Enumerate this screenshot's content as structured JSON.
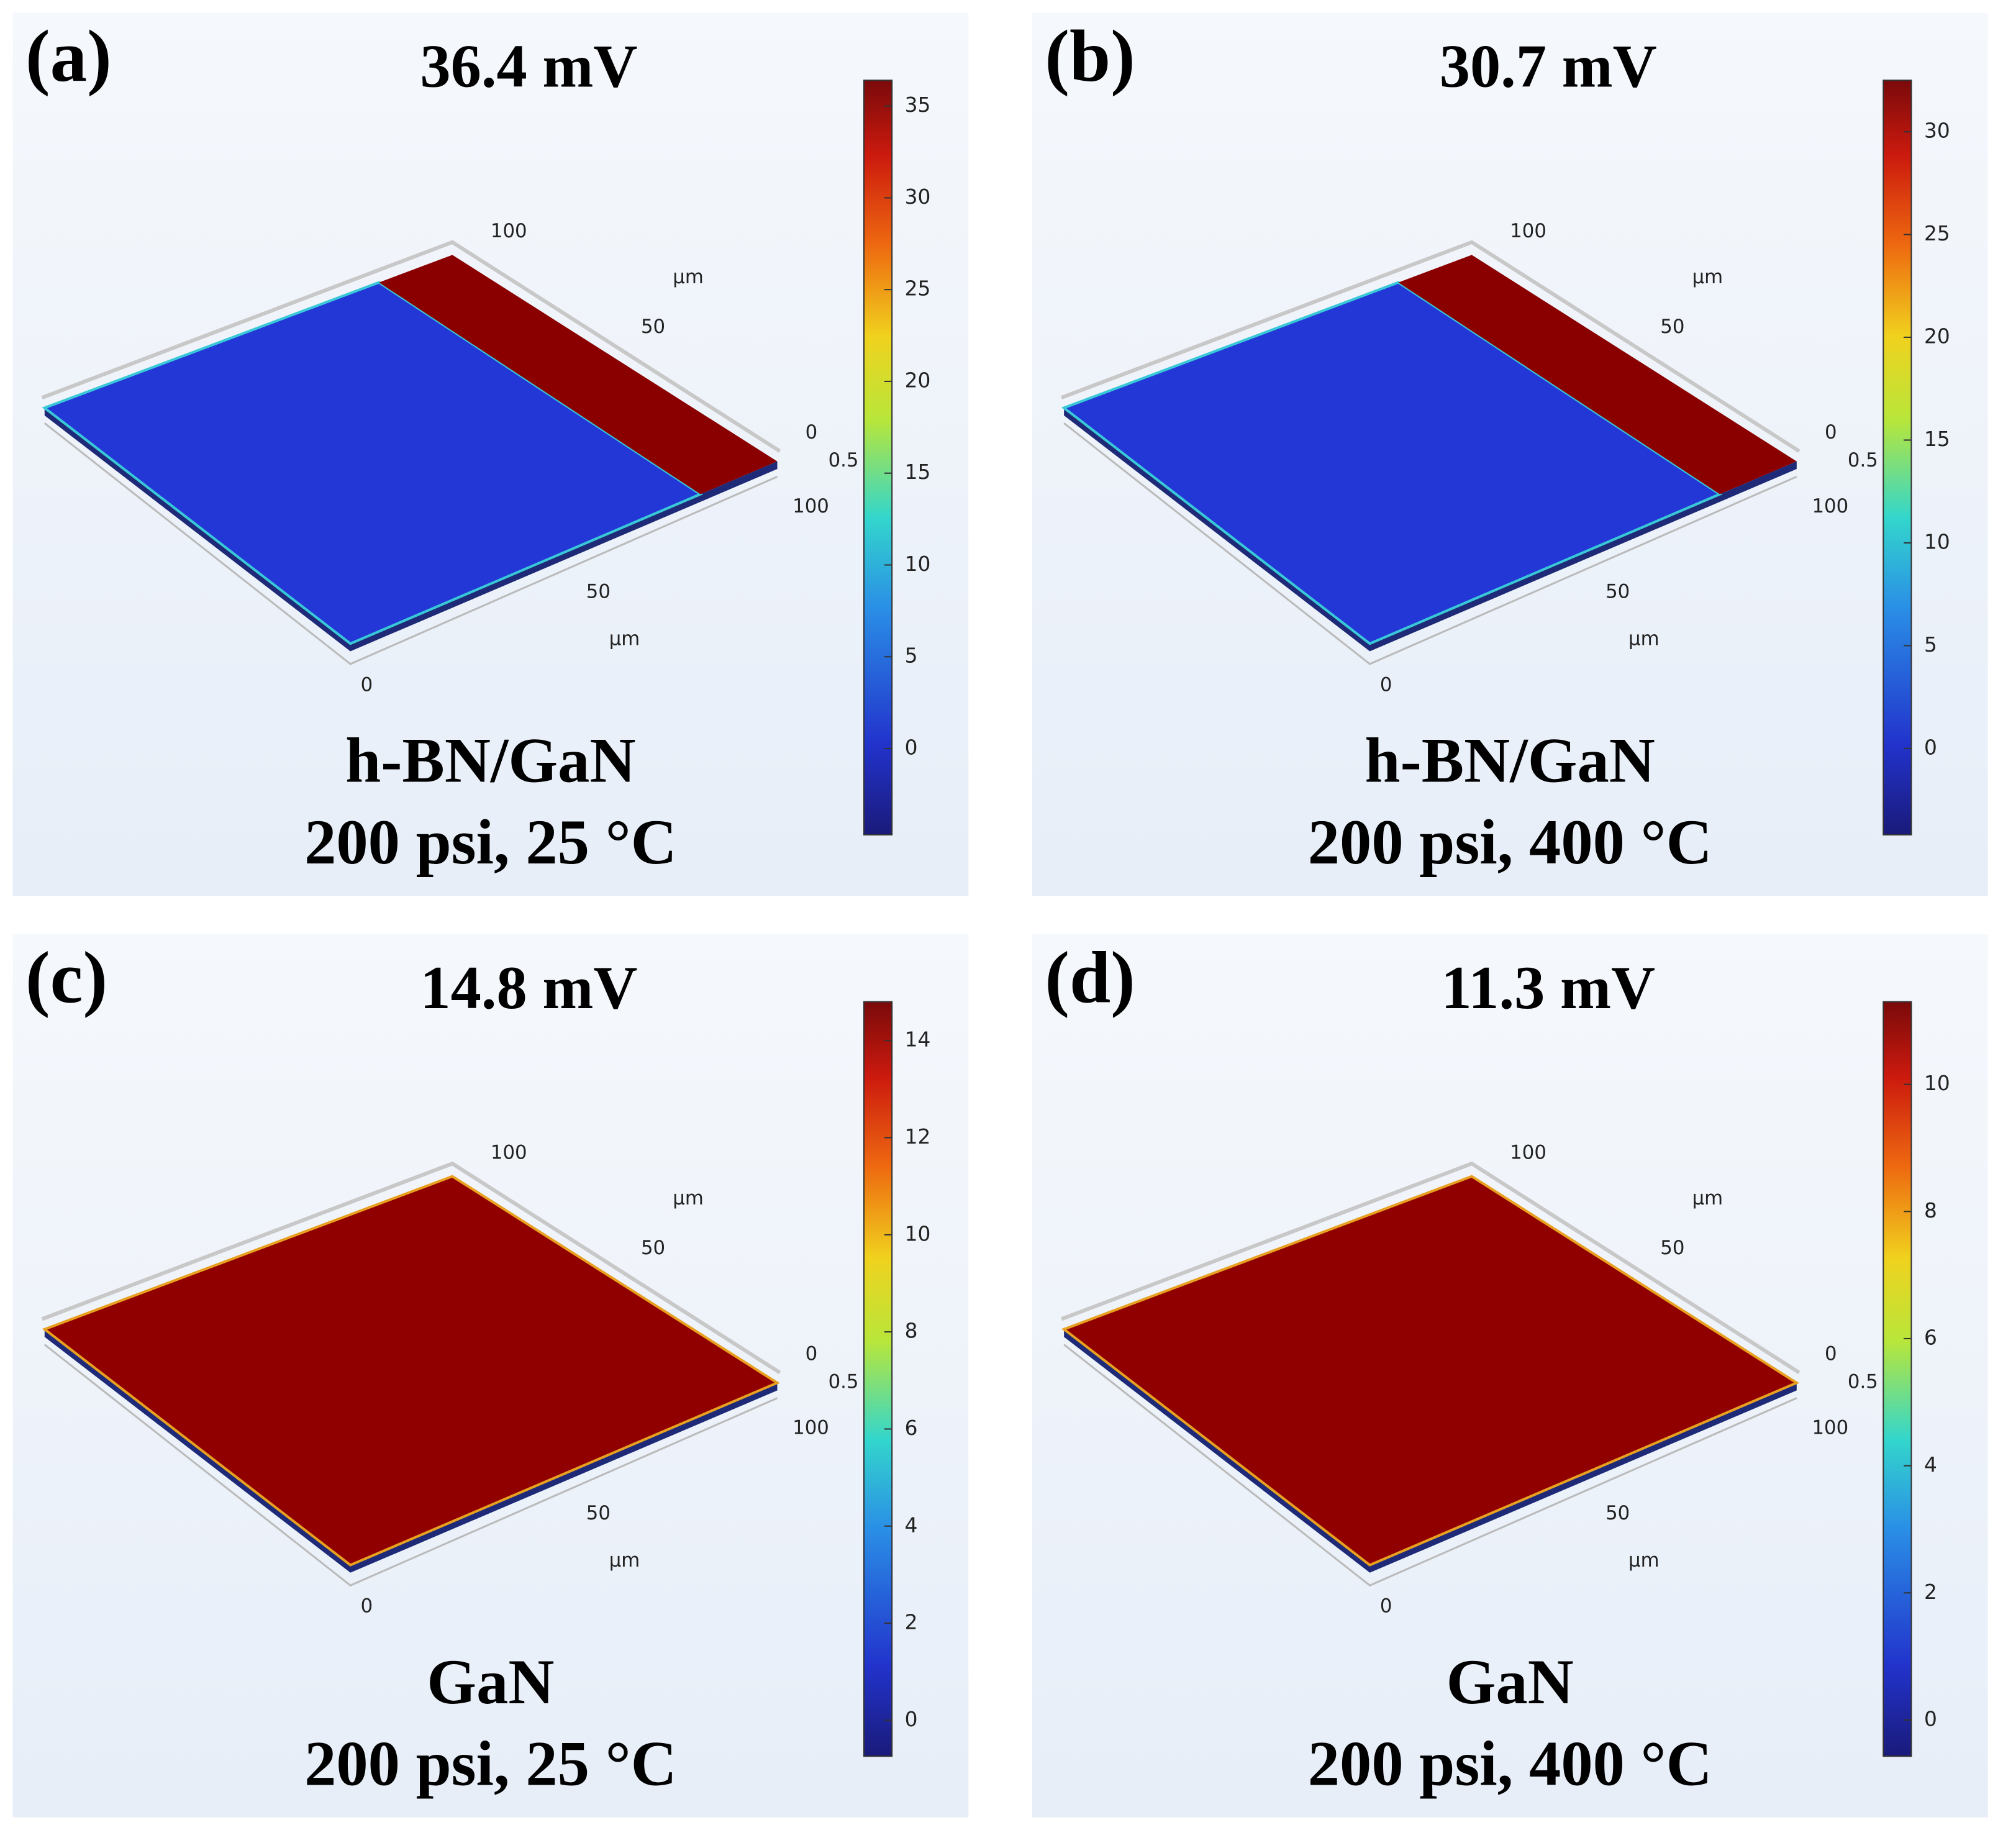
{
  "panels": [
    {
      "label": "(a)",
      "title": "36.4 mV",
      "caption": [
        "h-BN/GaN",
        "200 psi, 25 °C"
      ],
      "axis_labels": [
        "100",
        "µm",
        "50",
        "0",
        "0.5",
        "100",
        "50",
        "µm",
        "0"
      ],
      "surface_colors": [
        "#2337d6",
        "#8a0000"
      ],
      "colorbar": {
        "lim": [
          -4.7,
          36.4
        ],
        "ticks": [
          0,
          5,
          10,
          15,
          20,
          25,
          30,
          35
        ]
      }
    },
    {
      "label": "(b)",
      "title": "30.7 mV",
      "caption": [
        "h-BN/GaN",
        "200 psi, 400 °C"
      ],
      "axis_labels": [
        "100",
        "µm",
        "50",
        "0",
        "0.5",
        "100",
        "50",
        "µm",
        "0"
      ],
      "surface_colors": [
        "#2337d6",
        "#8a0000"
      ],
      "colorbar": {
        "lim": [
          -4.2,
          32.5
        ],
        "ticks": [
          0,
          5,
          10,
          15,
          20,
          25,
          30
        ]
      }
    },
    {
      "label": "(c)",
      "title": "14.8 mV",
      "caption": [
        "GaN",
        "200 psi, 25 °C"
      ],
      "axis_labels": [
        "100",
        "µm",
        "50",
        "0",
        "0.5",
        "100",
        "50",
        "µm",
        "0"
      ],
      "surface_colors": [
        "#900000"
      ],
      "colorbar": {
        "lim": [
          -0.74,
          14.8
        ],
        "ticks": [
          0,
          2,
          4,
          6,
          8,
          10,
          12,
          14
        ]
      }
    },
    {
      "label": "(d)",
      "title": "11.3 mV",
      "caption": [
        "GaN",
        "200 psi, 400 °C"
      ],
      "axis_labels": [
        "100",
        "µm",
        "50",
        "0",
        "0.5",
        "100",
        "50",
        "µm",
        "0"
      ],
      "surface_colors": [
        "#900000"
      ],
      "colorbar": {
        "lim": [
          -0.57,
          11.3
        ],
        "ticks": [
          0,
          2,
          4,
          6,
          8,
          10
        ]
      }
    }
  ]
}
